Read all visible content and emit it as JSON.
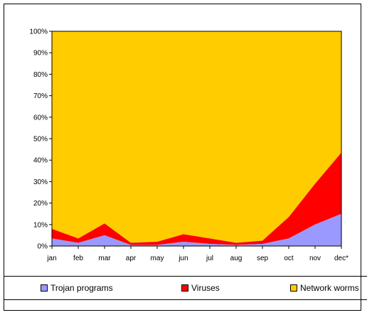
{
  "chart_data": {
    "type": "area",
    "stacked": "percent",
    "categories": [
      "jan",
      "feb",
      "mar",
      "apr",
      "may",
      "jun",
      "jul",
      "aug",
      "sep",
      "oct",
      "nov",
      "dec*"
    ],
    "ylim": [
      0,
      100
    ],
    "yticks": [
      "0%",
      "10%",
      "20%",
      "30%",
      "40%",
      "50%",
      "60%",
      "70%",
      "80%",
      "90%",
      "100%"
    ],
    "grid": false,
    "legend_position": "bottom",
    "series": [
      {
        "name": "Trojan programs",
        "color": "#9999ff",
        "values": [
          3.5,
          1.5,
          5,
          0.5,
          0.5,
          2,
          1,
          0.5,
          1,
          3.5,
          10,
          15
        ]
      },
      {
        "name": "Viruses",
        "color": "#ff0000",
        "values": [
          4.5,
          2,
          5.5,
          1,
          1.5,
          3.5,
          2.5,
          1,
          1.5,
          10,
          19,
          28.5
        ]
      },
      {
        "name": "Network worms",
        "color": "#ffcc00",
        "values": [
          92,
          96.5,
          89.5,
          98.5,
          98,
          94.5,
          96.5,
          98.5,
          97.5,
          86.5,
          71,
          56.5
        ]
      }
    ]
  }
}
